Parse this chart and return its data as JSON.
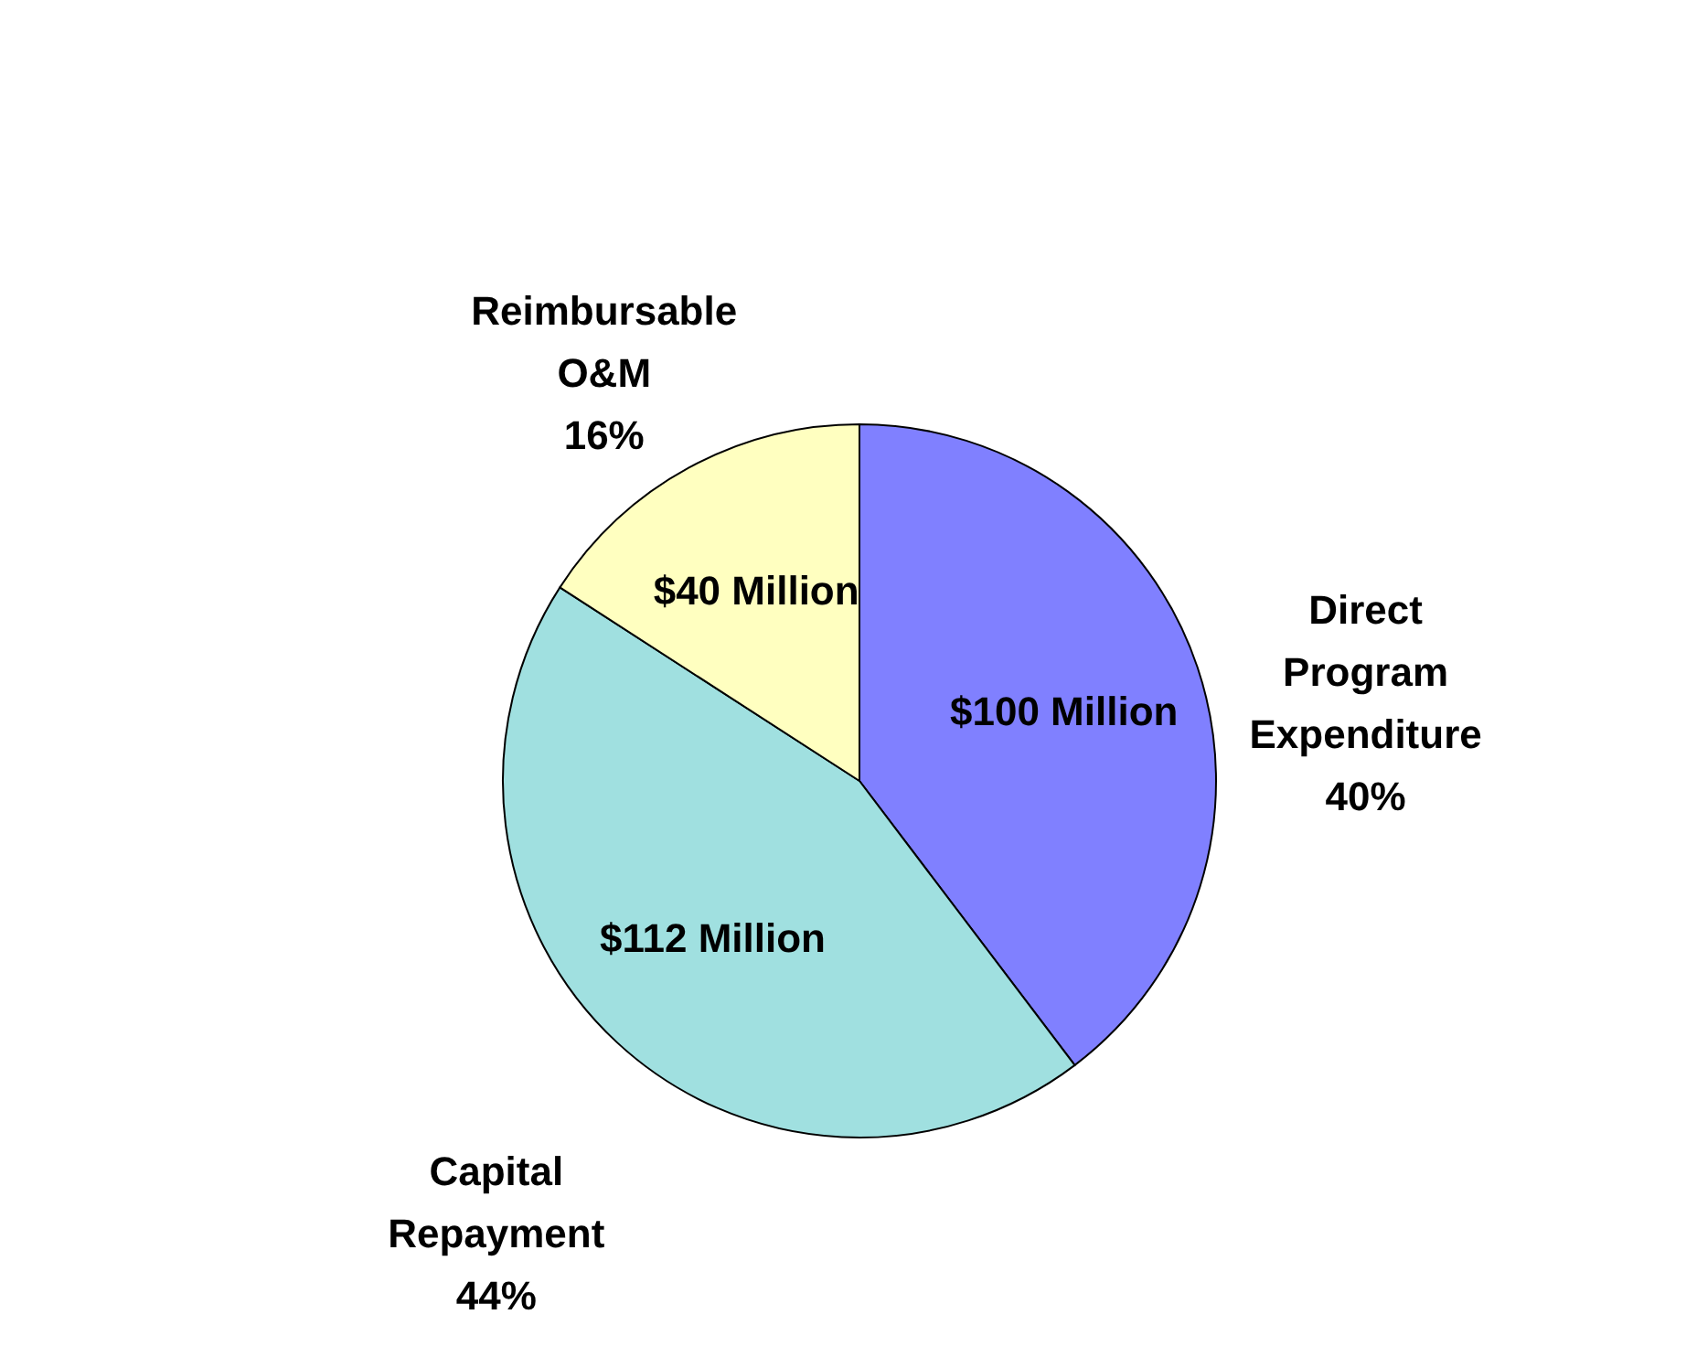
{
  "chart_data": {
    "type": "pie",
    "categories": [
      "Direct Program Expenditure",
      "Capital Repayment",
      "Reimbursable O&M"
    ],
    "values": [
      100,
      112,
      40
    ],
    "colors": [
      "#8080ff",
      "#a0e0e0",
      "#ffffc0"
    ],
    "value_labels": [
      "$100 Million",
      "$112 Million",
      "$40 Million"
    ],
    "annotations": [
      "40%",
      "44%",
      "16%"
    ]
  }
}
